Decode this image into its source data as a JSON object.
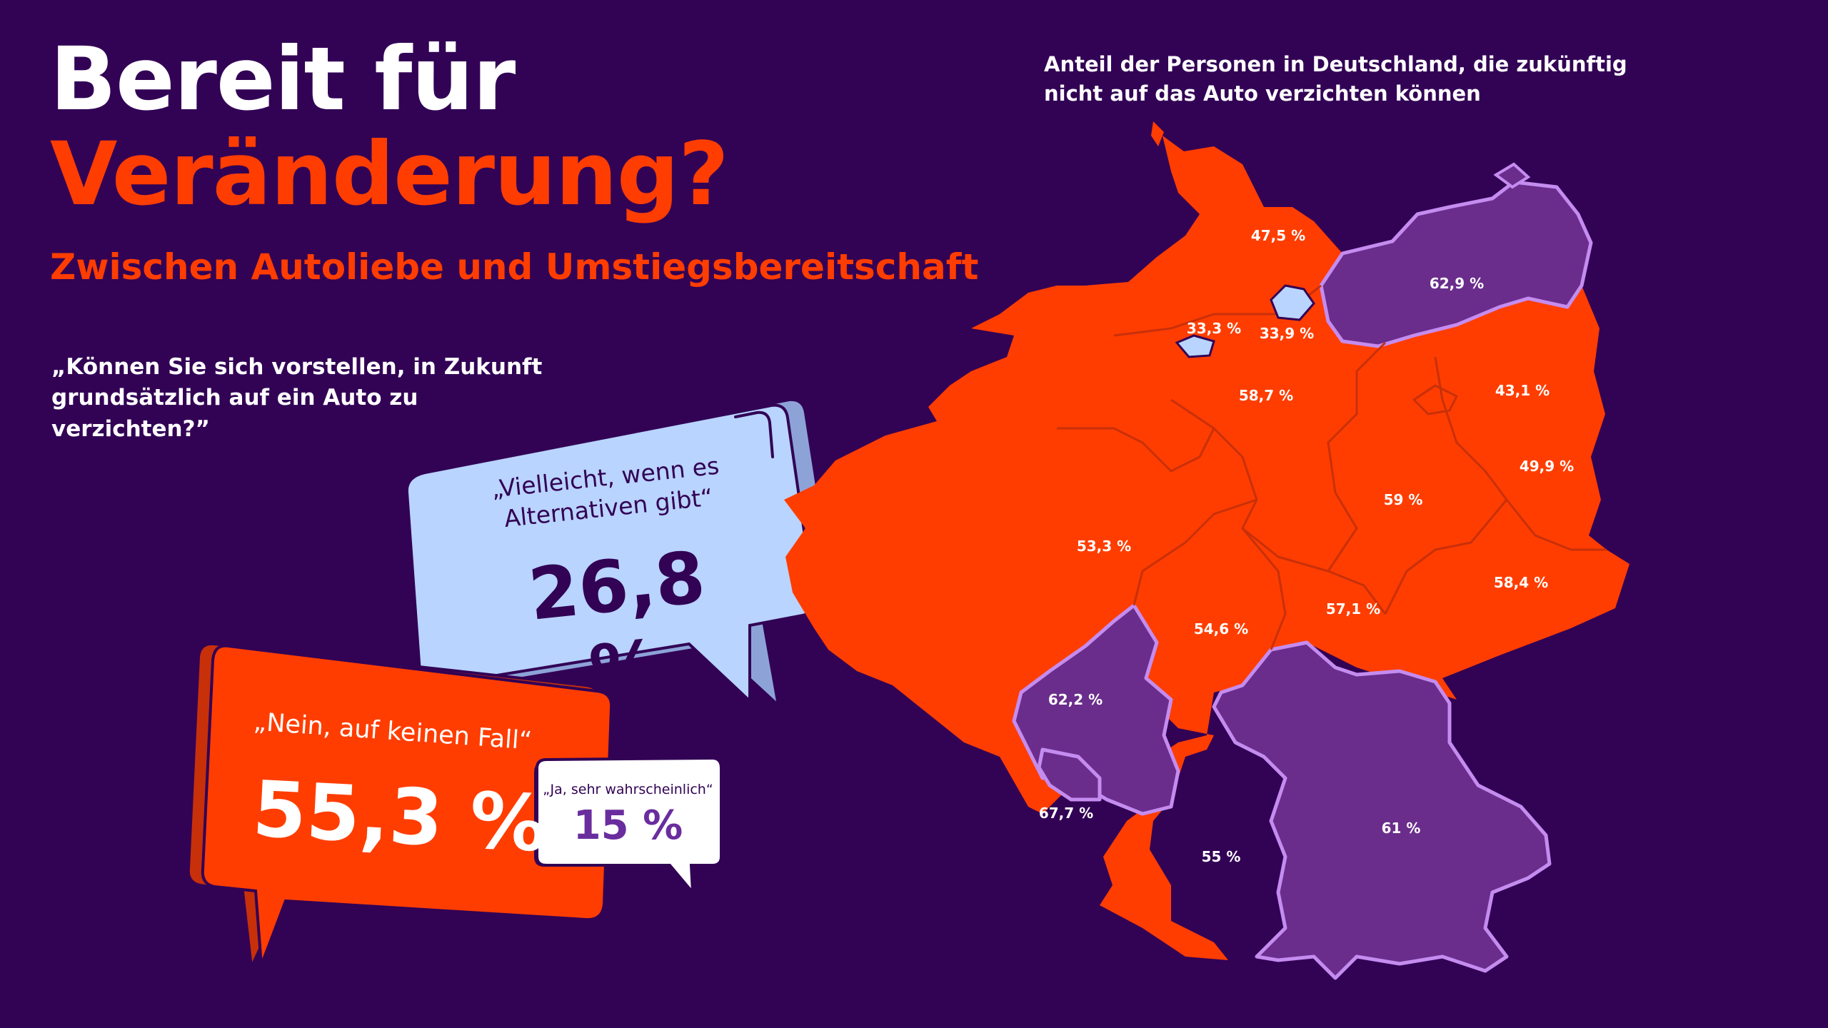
{
  "header": {
    "title_line1": "Bereit für",
    "title_line2": "Veränderung?",
    "subtitle": "Zwischen Autoliebe und Umstiegsbereitschaft"
  },
  "survey": {
    "question": "„Können Sie sich vorstellen, in Zukunft grundsätzlich auf ein Auto zu verzichten?”",
    "answers": [
      {
        "label": "„Vielleicht, wenn es Alternativen gibt“",
        "value": "26,8 %"
      },
      {
        "label": "„Nein, auf keinen Fall“",
        "value": "55,3 %"
      },
      {
        "label": "„Ja, sehr wahrscheinlich“",
        "value": "15 %"
      }
    ]
  },
  "map": {
    "caption": "Anteil der Personen in Deutschland, die zukünftig nicht auf das Auto verzichten können",
    "legend_colors": {
      "high": "#ff3d00",
      "low": "#6a2d8c",
      "city": "#b9d4ff",
      "border": "#c58cf0"
    },
    "regions": [
      {
        "name": "Schleswig-Holstein",
        "value": "47,5 %"
      },
      {
        "name": "Mecklenburg-Vorpommern",
        "value": "62,9 %"
      },
      {
        "name": "Bremen",
        "value": "33,3 %"
      },
      {
        "name": "Hamburg",
        "value": "33,9 %"
      },
      {
        "name": "Niedersachsen",
        "value": "58,7 %"
      },
      {
        "name": "Berlin",
        "value": "43,1 %"
      },
      {
        "name": "Brandenburg",
        "value": "49,9 %"
      },
      {
        "name": "Sachsen-Anhalt",
        "value": "59 %"
      },
      {
        "name": "Nordrhein-Westfalen",
        "value": "53,3 %"
      },
      {
        "name": "Sachsen",
        "value": "58,4 %"
      },
      {
        "name": "Hessen",
        "value": "54,6 %"
      },
      {
        "name": "Thüringen",
        "value": "57,1 %"
      },
      {
        "name": "Rheinland-Pfalz",
        "value": "62,2 %"
      },
      {
        "name": "Saarland",
        "value": "67,7 %"
      },
      {
        "name": "Bayern",
        "value": "61 %"
      },
      {
        "name": "Baden-Württemberg",
        "value": "55 %"
      }
    ]
  }
}
